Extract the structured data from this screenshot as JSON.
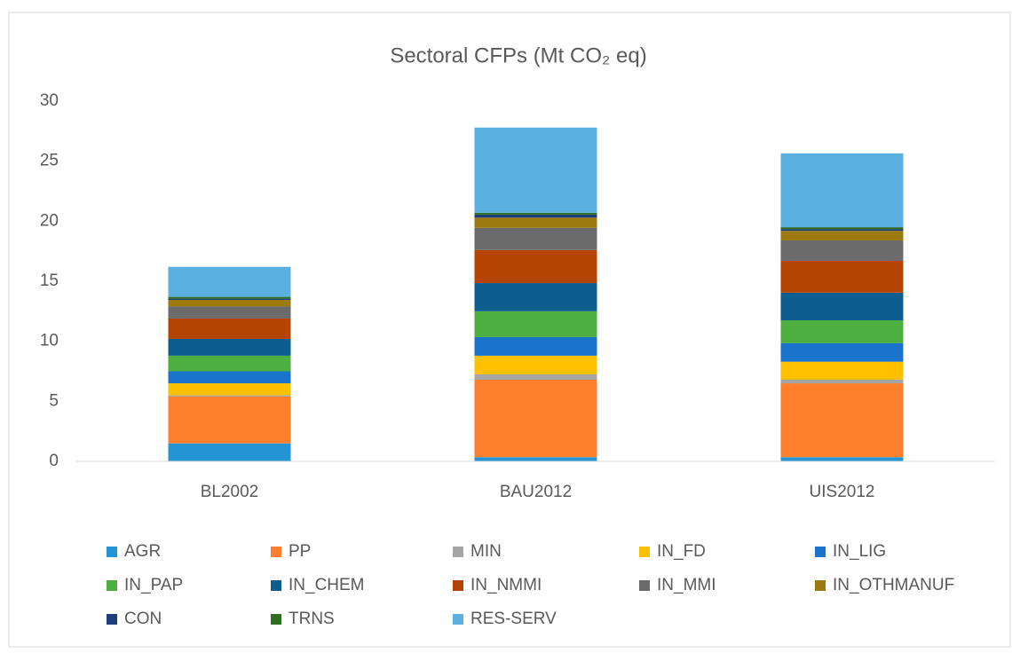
{
  "chart_data": {
    "type": "stacked_bar",
    "title": "Sectoral CFPs (Mt CO₂ eq)",
    "categories": [
      "BL2002",
      "BAU2012",
      "UIS2012"
    ],
    "series": [
      {
        "name": "AGR",
        "color": "#2394d4",
        "values": [
          1.5,
          0.35,
          0.35
        ]
      },
      {
        "name": "PP",
        "color": "#fd7f2c",
        "values": [
          3.9,
          6.45,
          6.15
        ]
      },
      {
        "name": "MIN",
        "color": "#a5a5a5",
        "values": [
          0.1,
          0.45,
          0.3
        ]
      },
      {
        "name": "IN_FD",
        "color": "#ffc000",
        "values": [
          1.0,
          1.55,
          1.5
        ]
      },
      {
        "name": "IN_LIG",
        "color": "#1b74cc",
        "values": [
          1.0,
          1.55,
          1.55
        ]
      },
      {
        "name": "IN_PAP",
        "color": "#4caf3f",
        "values": [
          1.3,
          2.15,
          1.9
        ]
      },
      {
        "name": "IN_CHEM",
        "color": "#0d5d8f",
        "values": [
          1.4,
          2.35,
          2.3
        ]
      },
      {
        "name": "IN_NMMI",
        "color": "#b54400",
        "values": [
          1.7,
          2.75,
          2.65
        ]
      },
      {
        "name": "IN_MMI",
        "color": "#6b6b6b",
        "values": [
          1.0,
          1.85,
          1.7
        ]
      },
      {
        "name": "IN_OTHMANUF",
        "color": "#9c7a0e",
        "values": [
          0.55,
          0.85,
          0.8
        ]
      },
      {
        "name": "CON",
        "color": "#1a3f7b",
        "values": [
          0.1,
          0.25,
          0.15
        ]
      },
      {
        "name": "TRNS",
        "color": "#2e6e1f",
        "values": [
          0.15,
          0.15,
          0.15
        ]
      },
      {
        "name": "RES-SERV",
        "color": "#5ab1e0",
        "values": [
          2.5,
          7.1,
          6.15
        ]
      }
    ],
    "ylim": [
      0,
      30
    ],
    "yticks": [
      0,
      5,
      10,
      15,
      20,
      25,
      30
    ],
    "grid": false,
    "legend": "bottom"
  }
}
